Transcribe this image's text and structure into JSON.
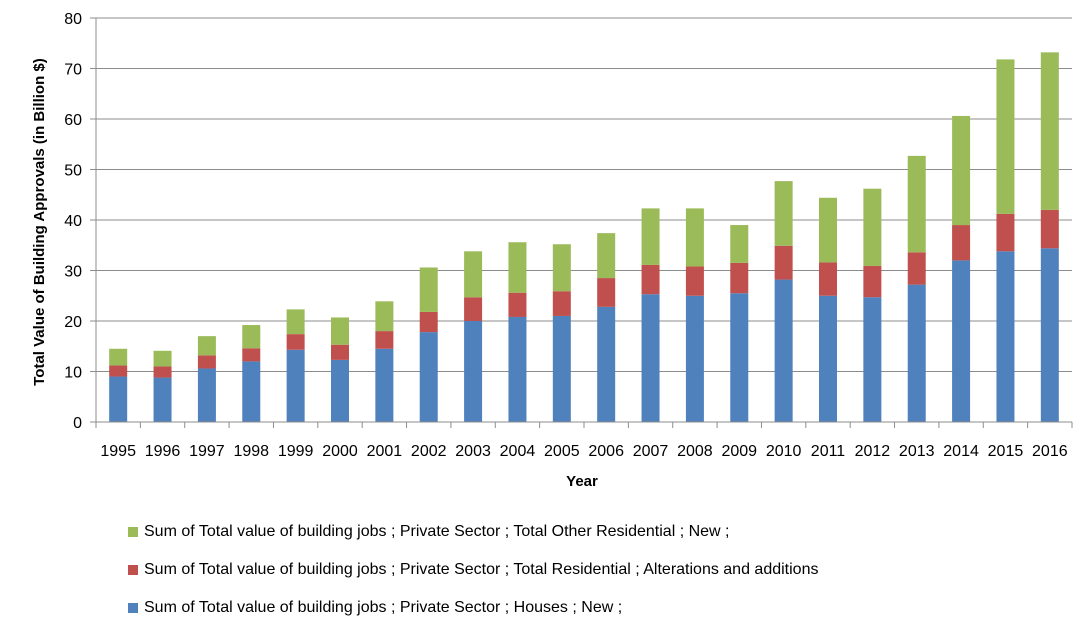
{
  "chart_data": {
    "type": "bar",
    "stacked": true,
    "title": "",
    "xlabel": "Year",
    "ylabel": "Total Value of Building Approvals (in Billion $)",
    "ylim": [
      0,
      80
    ],
    "yticks": [
      0,
      10,
      20,
      30,
      40,
      50,
      60,
      70,
      80
    ],
    "grid": true,
    "legend_position": "bottom",
    "categories": [
      "1995",
      "1996",
      "1997",
      "1998",
      "1999",
      "2000",
      "2001",
      "2002",
      "2003",
      "2004",
      "2005",
      "2006",
      "2007",
      "2008",
      "2009",
      "2010",
      "2011",
      "2012",
      "2013",
      "2014",
      "2015",
      "2016"
    ],
    "series": [
      {
        "name": "Sum of Total value of building jobs ; Private Sector ; Houses ; New ;",
        "color": "#4F81BD",
        "values": [
          9.0,
          8.8,
          10.6,
          12.0,
          14.3,
          12.3,
          14.5,
          17.8,
          20.0,
          20.8,
          21.0,
          22.8,
          25.3,
          25.0,
          25.5,
          28.2,
          25.0,
          24.7,
          27.2,
          32.0,
          33.8,
          34.4
        ]
      },
      {
        "name": "Sum of Total value of building jobs ; Private Sector ; Total Residential ; Alterations and additions",
        "color": "#C0504D",
        "values": [
          2.2,
          2.2,
          2.6,
          2.6,
          3.1,
          3.0,
          3.5,
          4.0,
          4.7,
          4.8,
          4.9,
          5.7,
          5.8,
          5.8,
          6.0,
          6.7,
          6.6,
          6.2,
          6.4,
          7.0,
          7.4,
          7.6
        ]
      },
      {
        "name": "Sum of Total value of building jobs ; Private Sector ; Total Other Residential ; New ;",
        "color": "#9BBB59",
        "values": [
          3.3,
          3.1,
          3.8,
          4.6,
          4.9,
          5.4,
          5.9,
          8.8,
          9.1,
          10.0,
          9.3,
          8.9,
          11.2,
          11.5,
          7.5,
          12.8,
          12.8,
          15.3,
          19.1,
          21.6,
          30.6,
          31.2
        ]
      }
    ],
    "legend_order": [
      2,
      1,
      0
    ]
  }
}
